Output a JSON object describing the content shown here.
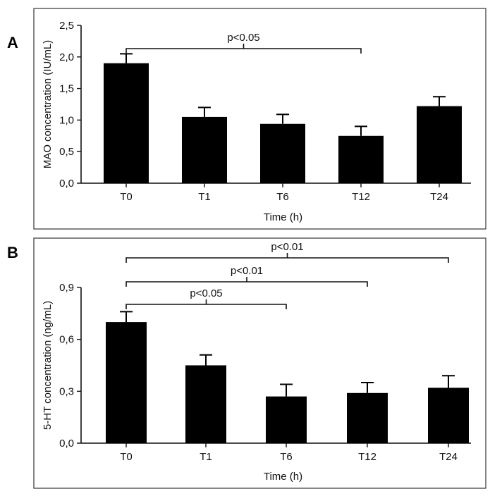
{
  "chart_data": [
    {
      "panel": "A",
      "type": "bar",
      "categories": [
        "T0",
        "T1",
        "T6",
        "T12",
        "T24"
      ],
      "values": [
        1.9,
        1.05,
        0.94,
        0.75,
        1.22
      ],
      "errors": [
        0.15,
        0.15,
        0.15,
        0.15,
        0.15
      ],
      "ylabel": "MAO concentration (IU/mL)",
      "xlabel": "Time (h)",
      "ylim": [
        0,
        2.5
      ],
      "yticks": [
        0,
        0.5,
        1.0,
        1.5,
        2.0,
        2.5
      ],
      "ytick_labels": [
        "0,0",
        "0,5",
        "1,0",
        "1,5",
        "2,0",
        "2,5"
      ],
      "color": "#000000",
      "significance": [
        {
          "from": "T0",
          "to": "T12",
          "label": "p<0.05"
        }
      ]
    },
    {
      "panel": "B",
      "type": "bar",
      "categories": [
        "T0",
        "T1",
        "T6",
        "T12",
        "T24"
      ],
      "values": [
        0.7,
        0.45,
        0.27,
        0.29,
        0.32
      ],
      "errors": [
        0.06,
        0.06,
        0.07,
        0.06,
        0.07
      ],
      "ylabel": "5-HT concentration (ng/mL)",
      "xlabel": "Time (h)",
      "ylim": [
        0,
        0.9
      ],
      "yticks": [
        0,
        0.3,
        0.6,
        0.9
      ],
      "ytick_labels": [
        "0,0",
        "0,3",
        "0,6",
        "0,9"
      ],
      "color": "#000000",
      "significance": [
        {
          "from": "T0",
          "to": "T6",
          "label": "p<0.05"
        },
        {
          "from": "T0",
          "to": "T12",
          "label": "p<0.01"
        },
        {
          "from": "T0",
          "to": "T24",
          "label": "p<0.01"
        }
      ]
    }
  ]
}
